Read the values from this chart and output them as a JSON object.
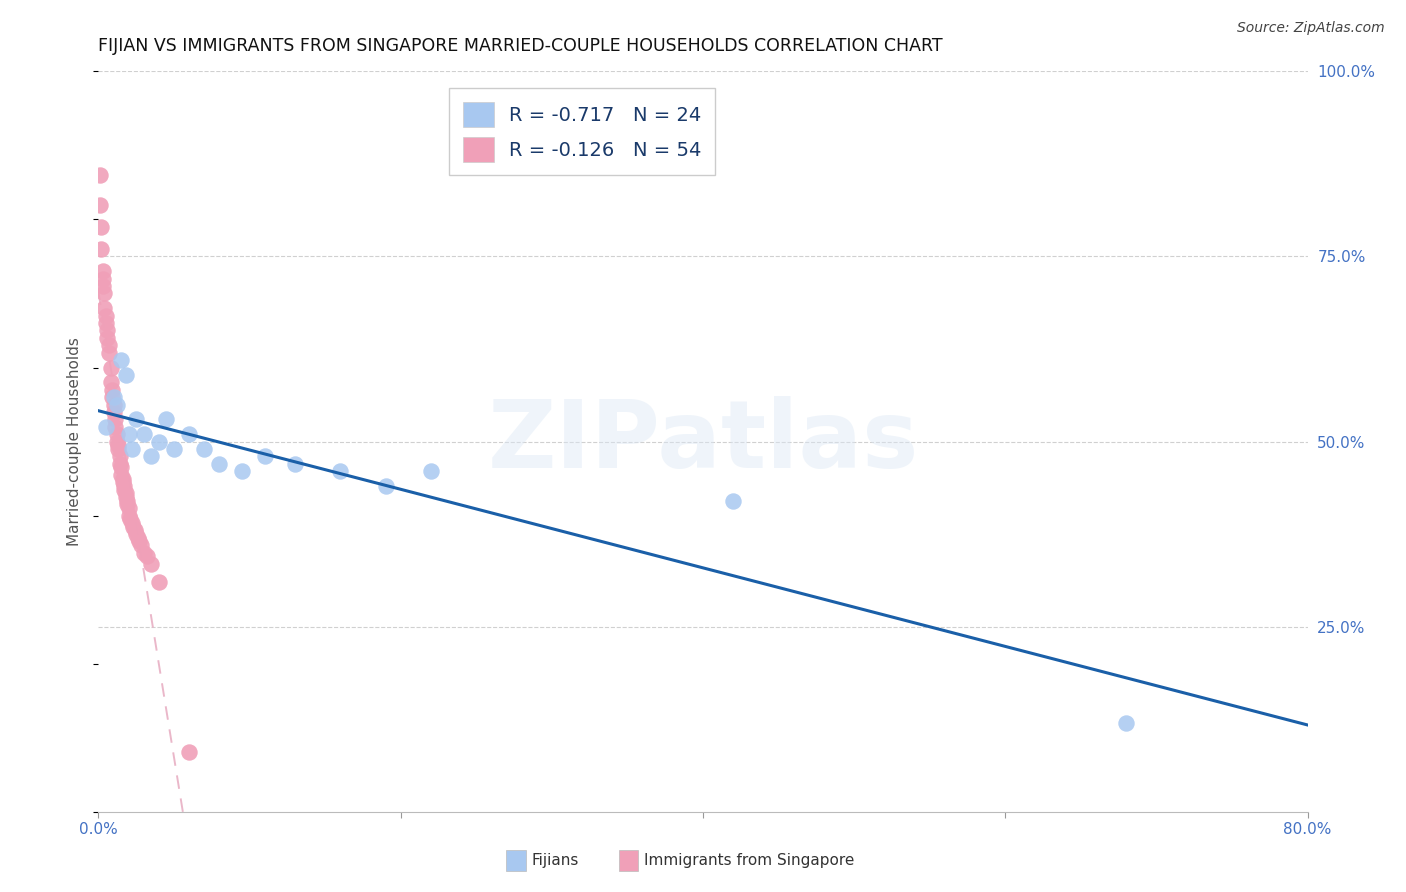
{
  "title": "FIJIAN VS IMMIGRANTS FROM SINGAPORE MARRIED-COUPLE HOUSEHOLDS CORRELATION CHART",
  "source": "Source: ZipAtlas.com",
  "ylabel": "Married-couple Households",
  "xlim": [
    0.0,
    0.8
  ],
  "ylim": [
    0.0,
    1.0
  ],
  "xtick_positions": [
    0.0,
    0.2,
    0.4,
    0.6,
    0.8
  ],
  "xticklabels": [
    "0.0%",
    "",
    "",
    "",
    "80.0%"
  ],
  "ytick_positions": [
    0.0,
    0.25,
    0.5,
    0.75,
    1.0
  ],
  "yticklabels_right": [
    "",
    "25.0%",
    "50.0%",
    "75.0%",
    "100.0%"
  ],
  "fijians": {
    "R": -0.717,
    "N": 24,
    "dot_color": "#a8c8f0",
    "line_color": "#1a5fa8",
    "x": [
      0.005,
      0.01,
      0.012,
      0.015,
      0.018,
      0.02,
      0.022,
      0.025,
      0.03,
      0.035,
      0.04,
      0.045,
      0.05,
      0.06,
      0.07,
      0.08,
      0.095,
      0.11,
      0.13,
      0.16,
      0.19,
      0.22,
      0.42,
      0.68
    ],
    "y": [
      0.52,
      0.56,
      0.55,
      0.61,
      0.59,
      0.51,
      0.49,
      0.53,
      0.51,
      0.48,
      0.5,
      0.53,
      0.49,
      0.51,
      0.49,
      0.47,
      0.46,
      0.48,
      0.47,
      0.46,
      0.44,
      0.46,
      0.42,
      0.12
    ]
  },
  "singapore": {
    "R": -0.126,
    "N": 54,
    "dot_color": "#f0a0b8",
    "line_color": "#e8b0c4",
    "x": [
      0.001,
      0.001,
      0.002,
      0.002,
      0.003,
      0.003,
      0.003,
      0.004,
      0.004,
      0.005,
      0.005,
      0.006,
      0.006,
      0.007,
      0.007,
      0.008,
      0.008,
      0.009,
      0.009,
      0.01,
      0.01,
      0.011,
      0.011,
      0.012,
      0.012,
      0.013,
      0.013,
      0.014,
      0.014,
      0.015,
      0.015,
      0.016,
      0.016,
      0.017,
      0.017,
      0.018,
      0.018,
      0.019,
      0.019,
      0.02,
      0.02,
      0.021,
      0.022,
      0.023,
      0.024,
      0.025,
      0.026,
      0.027,
      0.028,
      0.03,
      0.032,
      0.035,
      0.04,
      0.06
    ],
    "y": [
      0.86,
      0.82,
      0.79,
      0.76,
      0.73,
      0.72,
      0.71,
      0.7,
      0.68,
      0.67,
      0.66,
      0.65,
      0.64,
      0.63,
      0.62,
      0.6,
      0.58,
      0.57,
      0.56,
      0.55,
      0.54,
      0.53,
      0.52,
      0.51,
      0.5,
      0.495,
      0.49,
      0.48,
      0.47,
      0.465,
      0.455,
      0.45,
      0.445,
      0.44,
      0.435,
      0.43,
      0.425,
      0.42,
      0.415,
      0.41,
      0.4,
      0.395,
      0.39,
      0.385,
      0.38,
      0.375,
      0.37,
      0.365,
      0.36,
      0.35,
      0.345,
      0.335,
      0.31,
      0.08
    ]
  },
  "watermark_text": "ZIPatlas",
  "grid_color": "#d0d0d0",
  "background_color": "#ffffff",
  "title_fontsize": 12.5,
  "tick_fontsize": 11,
  "ylabel_fontsize": 11,
  "source_fontsize": 10,
  "legend_R_color": "#1a3a6a",
  "legend_N_color": "#1a7ac8"
}
